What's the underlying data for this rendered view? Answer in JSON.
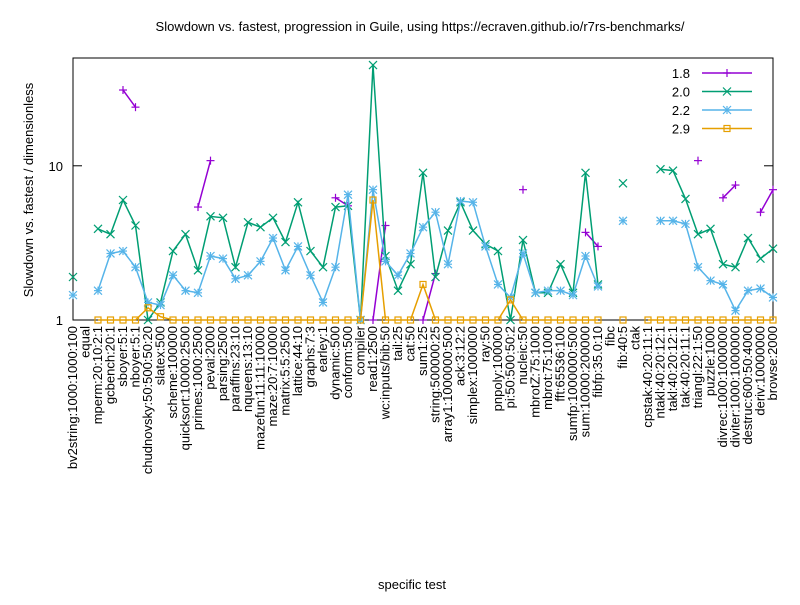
{
  "chart_data": {
    "type": "line",
    "title": "Slowdown vs. fastest, progression in Guile, using https://ecraven.github.io/r7rs-benchmarks/",
    "x_label": "specific test",
    "y_label": "Slowdown vs. fastest / dimensionless",
    "log_y": true,
    "legend": "top-right",
    "categories": [
      "bv2string:1000:1000:100",
      "equal",
      "mperm:20:10:2:1",
      "gcbench:20:1",
      "sboyer:5:1",
      "nboyer:5:1",
      "chudnovsky:50:500:50:20",
      "slatex:500",
      "scheme:100000",
      "quicksort:10000:2500",
      "primes:1000:2500",
      "peval:2000",
      "parsing:2500",
      "paraffins:23:10",
      "nqueens:13:10",
      "mazefun:11:11:10000",
      "maze:20:7:10000",
      "matrix:5:5:2500",
      "lattice:44:10",
      "graphs:7:3",
      "earley:1",
      "dynamic:500",
      "conform:500",
      "compiler",
      "read1:2500",
      "wc:inputs/bib:50",
      "tail:25",
      "cat:50",
      "sum1:25",
      "string:500000:25",
      "array1:1000000:500",
      "ack:3:12:2",
      "simplex:1000000",
      "ray:50",
      "pnpoly:100000",
      "pi:50:500:50:2",
      "nucleic:50",
      "mbrotZ:75:1000",
      "mbrot:75:1000",
      "fft:65536:100",
      "sumfp:1000000:500",
      "sum:10000:200000",
      "fibfp:35.0:10",
      "fibc",
      "fib:40:5",
      "ctak",
      "cpstak:40:20:11:1",
      "ntakl:40:20:12:1",
      "takl:40:20:12:1",
      "tak:40:20:11:1",
      "triangl:22:1:50",
      "puzzle:1000",
      "divrec:1000:1000000",
      "diviter:1000:1000000",
      "destruc:600:50:4000",
      "deriv:10000000",
      "browse:2000"
    ],
    "series": [
      {
        "name": "1.8",
        "color": "#9400d3",
        "marker": "plus",
        "values": [
          null,
          null,
          null,
          null,
          31,
          24,
          null,
          null,
          null,
          null,
          5.4,
          10.8,
          null,
          null,
          null,
          null,
          null,
          null,
          null,
          null,
          null,
          6.2,
          5.5,
          null,
          1.0,
          4.1,
          null,
          null,
          1.0,
          2.0,
          null,
          null,
          null,
          null,
          null,
          null,
          7.0,
          null,
          null,
          null,
          null,
          3.7,
          3.0,
          null,
          null,
          null,
          null,
          null,
          null,
          null,
          10.8,
          null,
          6.2,
          7.5,
          null,
          5.0,
          7.0
        ]
      },
      {
        "name": "2.0",
        "color": "#009e73",
        "marker": "cross",
        "values": [
          1.9,
          null,
          3.9,
          3.6,
          6.0,
          4.1,
          1.0,
          1.3,
          2.8,
          3.6,
          2.1,
          4.7,
          4.6,
          2.2,
          4.3,
          4.0,
          4.6,
          3.2,
          5.8,
          2.8,
          2.2,
          5.4,
          5.5,
          1.0,
          45,
          2.6,
          1.55,
          2.3,
          9.0,
          1.9,
          3.8,
          5.8,
          3.8,
          3.1,
          2.8,
          1.0,
          3.3,
          1.5,
          1.5,
          2.3,
          1.5,
          9.0,
          1.7,
          null,
          7.7,
          null,
          null,
          9.5,
          9.3,
          6.1,
          3.6,
          3.9,
          2.3,
          2.2,
          3.4,
          2.5,
          2.9
        ]
      },
      {
        "name": "2.2",
        "color": "#56b4e9",
        "marker": "star",
        "values": [
          1.45,
          null,
          1.55,
          2.7,
          2.8,
          2.2,
          1.3,
          1.25,
          1.95,
          1.55,
          1.5,
          2.6,
          2.5,
          1.85,
          1.95,
          2.4,
          3.4,
          2.1,
          3.0,
          1.95,
          1.3,
          2.2,
          6.5,
          1.0,
          7.0,
          2.4,
          1.95,
          2.7,
          4.0,
          5.0,
          2.3,
          5.9,
          5.8,
          3.0,
          1.7,
          1.4,
          2.7,
          1.5,
          1.55,
          1.55,
          1.45,
          2.6,
          1.65,
          null,
          4.4,
          null,
          null,
          4.4,
          4.4,
          4.2,
          2.2,
          1.8,
          1.7,
          1.15,
          1.55,
          1.6,
          1.4
        ]
      },
      {
        "name": "2.9",
        "color": "#e69f00",
        "marker": "square",
        "values": [
          null,
          null,
          1,
          1,
          1,
          1,
          1.2,
          1.05,
          1,
          1,
          1,
          1,
          1,
          1,
          1,
          1,
          1,
          1,
          1,
          1,
          1,
          1,
          1,
          1,
          6.0,
          1,
          1,
          1,
          1.7,
          1,
          1,
          1,
          1,
          1,
          1,
          1.35,
          1,
          1,
          1,
          1,
          1,
          1,
          1,
          null,
          1,
          null,
          1,
          1,
          1,
          1,
          1,
          1,
          1,
          1,
          1,
          1,
          1
        ]
      }
    ],
    "ylim": [
      1,
      50
    ],
    "yticks": [
      1,
      10
    ]
  }
}
